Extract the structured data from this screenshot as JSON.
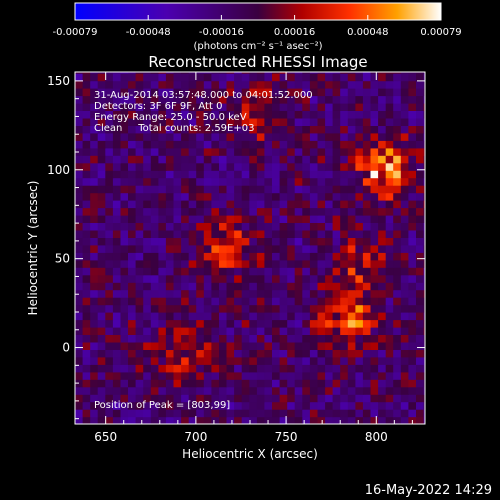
{
  "colorbar": {
    "tick_labels": [
      "-0.00079",
      "-0.00048",
      "-0.00016",
      "0.00016",
      "0.00048",
      "0.00079"
    ],
    "unit_label": "(photons cm⁻² s⁻¹ asec⁻²)"
  },
  "chart_data": {
    "type": "heatmap",
    "title": "Reconstructed RHESSI Image",
    "xlabel": "Heliocentric X (arcsec)",
    "ylabel": "Heliocentric Y (arcsec)",
    "xlim": [
      633,
      827
    ],
    "ylim": [
      -43,
      155
    ],
    "x_ticks": [
      650,
      700,
      750,
      800
    ],
    "y_ticks": [
      0,
      50,
      100,
      150
    ],
    "color_range": [
      -0.00079,
      0.00079
    ],
    "grid": false,
    "sources": [
      {
        "x": 803,
        "y": 99,
        "peak": 0.00079
      },
      {
        "x": 715,
        "y": 55,
        "peak": 0.00055
      },
      {
        "x": 782,
        "y": 15,
        "peak": 0.0006
      },
      {
        "x": 690,
        "y": -5,
        "peak": 0.0005
      },
      {
        "x": 790,
        "y": 45,
        "peak": 0.0004
      },
      {
        "x": 735,
        "y": 130,
        "peak": 0.00035
      }
    ]
  },
  "info": {
    "time_range": "31-Aug-2014 03:57:48.000 to 04:01:52.000",
    "detectors": "Detectors: 3F 6F 9F, Att 0",
    "energy": "Energy Range: 25.0 - 50.0 keV",
    "method": "Clean     Total counts: 2.59E+03",
    "peak": "Position of Peak = [803,99]"
  },
  "footer": {
    "date": "16-May-2022 14:29"
  }
}
